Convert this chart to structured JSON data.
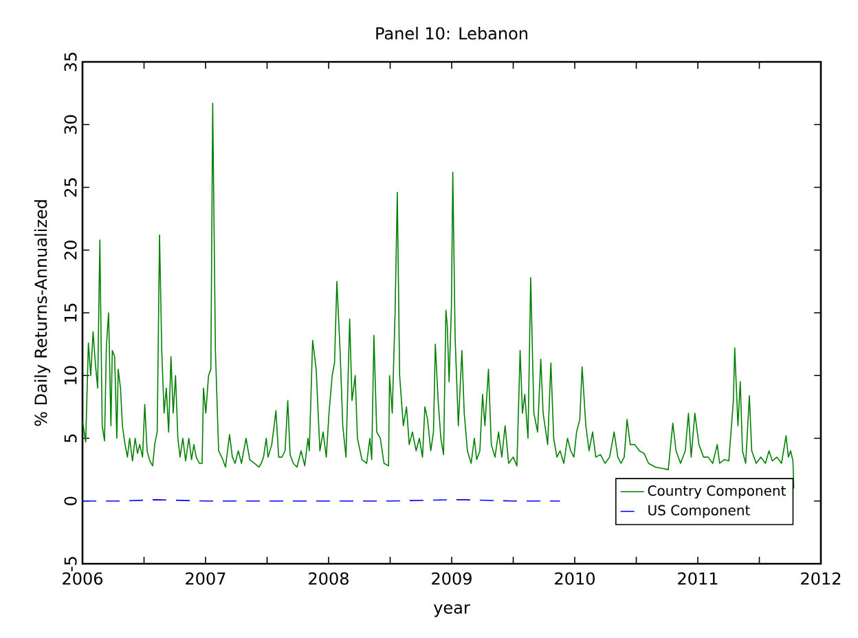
{
  "chart_data": {
    "type": "line",
    "title": "Panel 10: Lebanon",
    "xlabel": "year",
    "ylabel": "% Daily Returns-Annualized",
    "xlim": [
      2006,
      2012
    ],
    "xticks": [
      2006,
      {
        "value": 2006.5,
        "label": null
      },
      2007,
      {
        "value": 2007.5,
        "label": null
      },
      2008,
      {
        "value": 2008.5,
        "label": null
      },
      2009,
      {
        "value": 2009.5,
        "label": null
      },
      2010,
      {
        "value": 2010.5,
        "label": null
      },
      2011,
      {
        "value": 2011.5,
        "label": null
      },
      2012
    ],
    "ylim": [
      -5,
      35
    ],
    "yticks": [
      -5,
      0,
      5,
      10,
      15,
      20,
      25,
      30,
      35
    ],
    "legend": "bottom right",
    "grid": false,
    "series": [
      {
        "name": "Country Component",
        "color": "#008000",
        "line_style": "solid",
        "x": [
          2006.0,
          2006.026,
          2006.048,
          2006.067,
          2006.086,
          2006.104,
          2006.123,
          2006.141,
          2006.16,
          2006.179,
          2006.194,
          2006.212,
          2006.231,
          2006.242,
          2006.261,
          2006.279,
          2006.29,
          2006.309,
          2006.324,
          2006.346,
          2006.365,
          2006.383,
          2006.406,
          2006.428,
          2006.447,
          2006.465,
          2006.488,
          2006.506,
          2006.525,
          2006.547,
          2006.57,
          2006.588,
          2006.607,
          2006.626,
          2006.644,
          2006.663,
          2006.681,
          2006.7,
          2006.719,
          2006.737,
          2006.756,
          2006.775,
          2006.793,
          2006.815,
          2006.838,
          2006.864,
          2006.886,
          2006.905,
          2006.924,
          2006.95,
          2006.972,
          2006.983,
          2007.002,
          2007.024,
          2007.043,
          2007.058,
          2007.08,
          2007.106,
          2007.136,
          2007.162,
          2007.195,
          2007.218,
          2007.24,
          2007.266,
          2007.292,
          2007.329,
          2007.359,
          2007.397,
          2007.434,
          2007.452,
          2007.471,
          2007.493,
          2007.508,
          2007.538,
          2007.572,
          2007.594,
          2007.62,
          2007.646,
          2007.668,
          2007.687,
          2007.713,
          2007.743,
          2007.776,
          2007.806,
          2007.832,
          2007.843,
          2007.87,
          2007.899,
          2007.929,
          2007.955,
          2007.981,
          2008.003,
          2008.029,
          2008.048,
          2008.067,
          2008.093,
          2008.115,
          2008.141,
          2008.171,
          2008.19,
          2008.216,
          2008.234,
          2008.271,
          2008.309,
          2008.335,
          2008.35,
          2008.368,
          2008.391,
          2008.42,
          2008.45,
          2008.487,
          2008.495,
          2008.517,
          2008.54,
          2008.558,
          2008.577,
          2008.607,
          2008.633,
          2008.655,
          2008.681,
          2008.711,
          2008.737,
          2008.763,
          2008.782,
          2008.804,
          2008.83,
          2008.852,
          2008.867,
          2008.89,
          2008.912,
          2008.934,
          2008.953,
          2008.964,
          2008.979,
          2008.998,
          2009.009,
          2009.028,
          2009.054,
          2009.083,
          2009.102,
          2009.128,
          2009.158,
          2009.184,
          2009.203,
          2009.229,
          2009.251,
          2009.27,
          2009.299,
          2009.322,
          2009.352,
          2009.381,
          2009.407,
          2009.434,
          2009.463,
          2009.5,
          2009.53,
          2009.556,
          2009.575,
          2009.594,
          2009.62,
          2009.642,
          2009.668,
          2009.698,
          2009.724,
          2009.743,
          2009.78,
          2009.806,
          2009.829,
          2009.855,
          2009.881,
          2009.911,
          2009.941,
          2009.967,
          2009.993,
          2010.015,
          2010.041,
          2010.06,
          2010.09,
          2010.116,
          2010.145,
          2010.171,
          2010.209,
          2010.246,
          2010.283,
          2010.32,
          2010.35,
          2010.376,
          2010.402,
          2010.425,
          2010.451,
          2010.488,
          2010.525,
          2010.563,
          2010.6,
          2010.656,
          2010.711,
          2010.76,
          2010.797,
          2010.823,
          2010.86,
          2010.898,
          2010.924,
          2010.946,
          2010.976,
          2011.009,
          2011.047,
          2011.084,
          2011.121,
          2011.158,
          2011.177,
          2011.214,
          2011.252,
          2011.289,
          2011.3,
          2011.326,
          2011.345,
          2011.363,
          2011.389,
          2011.419,
          2011.438,
          2011.475,
          2011.512,
          2011.549,
          2011.579,
          2011.605,
          2011.643,
          2011.68,
          2011.717,
          2011.736,
          2011.754,
          2011.773,
          2011.78
        ],
        "values": [
          6.4,
          4.7,
          12.6,
          10,
          13.5,
          11,
          9,
          20.8,
          6,
          4.8,
          12.3,
          15,
          6,
          12,
          11.5,
          5,
          10.5,
          9,
          6,
          4.5,
          3.5,
          5,
          3.2,
          5,
          3.8,
          4.5,
          3.5,
          7.7,
          4,
          3.2,
          2.8,
          4.6,
          5.5,
          21.2,
          12,
          7,
          9,
          5.5,
          11.5,
          7,
          10,
          5,
          3.5,
          5,
          3.2,
          5,
          3.3,
          4.5,
          3.5,
          3,
          3,
          9,
          7,
          10,
          10.5,
          31.7,
          12,
          4,
          3.4,
          2.7,
          5.3,
          3.5,
          3,
          4,
          3,
          5,
          3.3,
          3,
          2.7,
          3,
          3.5,
          5,
          3.5,
          4.5,
          7.2,
          3.5,
          3.5,
          4,
          8,
          3.7,
          3,
          2.7,
          4,
          2.8,
          5,
          4,
          12.8,
          10.5,
          4,
          5.5,
          3.5,
          7,
          10,
          11,
          17.5,
          12,
          6,
          3.5,
          14.5,
          8,
          10,
          5,
          3.3,
          3,
          5,
          3.3,
          13.2,
          5.5,
          5,
          3,
          2.8,
          10,
          7,
          15,
          24.6,
          10,
          6,
          7.5,
          4.5,
          5.5,
          4,
          5,
          3.5,
          7.5,
          6.5,
          4,
          5.5,
          12.5,
          8,
          5,
          3.7,
          15.2,
          14,
          9.5,
          15.5,
          26.2,
          13,
          6,
          12,
          7,
          4,
          3,
          5,
          3.3,
          4,
          8.5,
          6,
          10.5,
          4.5,
          3.5,
          5.5,
          3.5,
          6,
          3,
          3.5,
          2.8,
          12,
          7,
          8.5,
          5,
          17.8,
          7,
          5.5,
          11.3,
          7,
          4.5,
          11,
          5,
          3.5,
          4,
          3,
          5,
          4,
          3.5,
          5.5,
          6.5,
          10.7,
          6,
          4,
          5.5,
          3.5,
          3.7,
          3,
          3.5,
          5.5,
          3.5,
          3,
          3.5,
          6.5,
          4.5,
          4.5,
          4,
          3.8,
          3,
          2.7,
          2.6,
          2.5,
          6.2,
          4,
          3,
          4,
          7,
          3.5,
          7,
          4.5,
          3.5,
          3.5,
          3,
          4.5,
          3,
          3.3,
          3.2,
          8,
          12.2,
          6,
          9.5,
          4,
          3,
          8.4,
          4,
          3,
          3.5,
          3,
          4,
          3.2,
          3.5,
          3,
          5.2,
          3.5,
          4,
          3.2,
          1
        ]
      },
      {
        "name": "US Component",
        "color": "#0000ff",
        "line_style": "dashed",
        "x": [
          2006.0,
          2006.3,
          2006.6,
          2007.0,
          2007.5,
          2008.0,
          2008.5,
          2009.0,
          2009.1,
          2009.5,
          2009.88
        ],
        "values": [
          0,
          0,
          0.1,
          0,
          0,
          0,
          0,
          0.1,
          0.1,
          0,
          0
        ]
      }
    ]
  }
}
